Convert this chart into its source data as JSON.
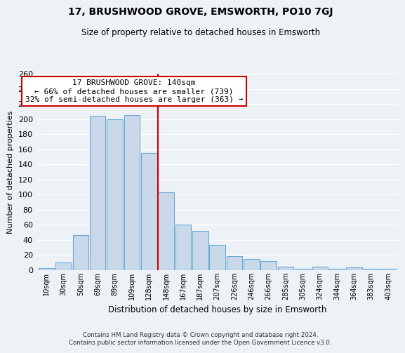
{
  "title": "17, BRUSHWOOD GROVE, EMSWORTH, PO10 7GJ",
  "subtitle": "Size of property relative to detached houses in Emsworth",
  "xlabel": "Distribution of detached houses by size in Emsworth",
  "ylabel": "Number of detached properties",
  "bar_labels": [
    "10sqm",
    "30sqm",
    "50sqm",
    "69sqm",
    "89sqm",
    "109sqm",
    "128sqm",
    "148sqm",
    "167sqm",
    "187sqm",
    "207sqm",
    "226sqm",
    "246sqm",
    "266sqm",
    "285sqm",
    "305sqm",
    "324sqm",
    "344sqm",
    "364sqm",
    "383sqm",
    "403sqm"
  ],
  "bar_heights": [
    3,
    10,
    46,
    204,
    200,
    205,
    155,
    103,
    60,
    52,
    33,
    19,
    15,
    12,
    5,
    2,
    5,
    2,
    4,
    2,
    2
  ],
  "bar_color": "#c9d9ea",
  "bar_edge_color": "#6aaad4",
  "marker_line_color": "#cc0000",
  "annotation_title": "17 BRUSHWOOD GROVE: 140sqm",
  "annotation_line1": "← 66% of detached houses are smaller (739)",
  "annotation_line2": "32% of semi-detached houses are larger (363) →",
  "annotation_box_color": "#ffffff",
  "annotation_box_edge_color": "#cc0000",
  "ylim": [
    0,
    260
  ],
  "yticks": [
    0,
    20,
    40,
    60,
    80,
    100,
    120,
    140,
    160,
    180,
    200,
    220,
    240,
    260
  ],
  "footer_line1": "Contains HM Land Registry data © Crown copyright and database right 2024.",
  "footer_line2": "Contains public sector information licensed under the Open Government Licence v3.0.",
  "background_color": "#edf2f7",
  "grid_color": "#ffffff"
}
